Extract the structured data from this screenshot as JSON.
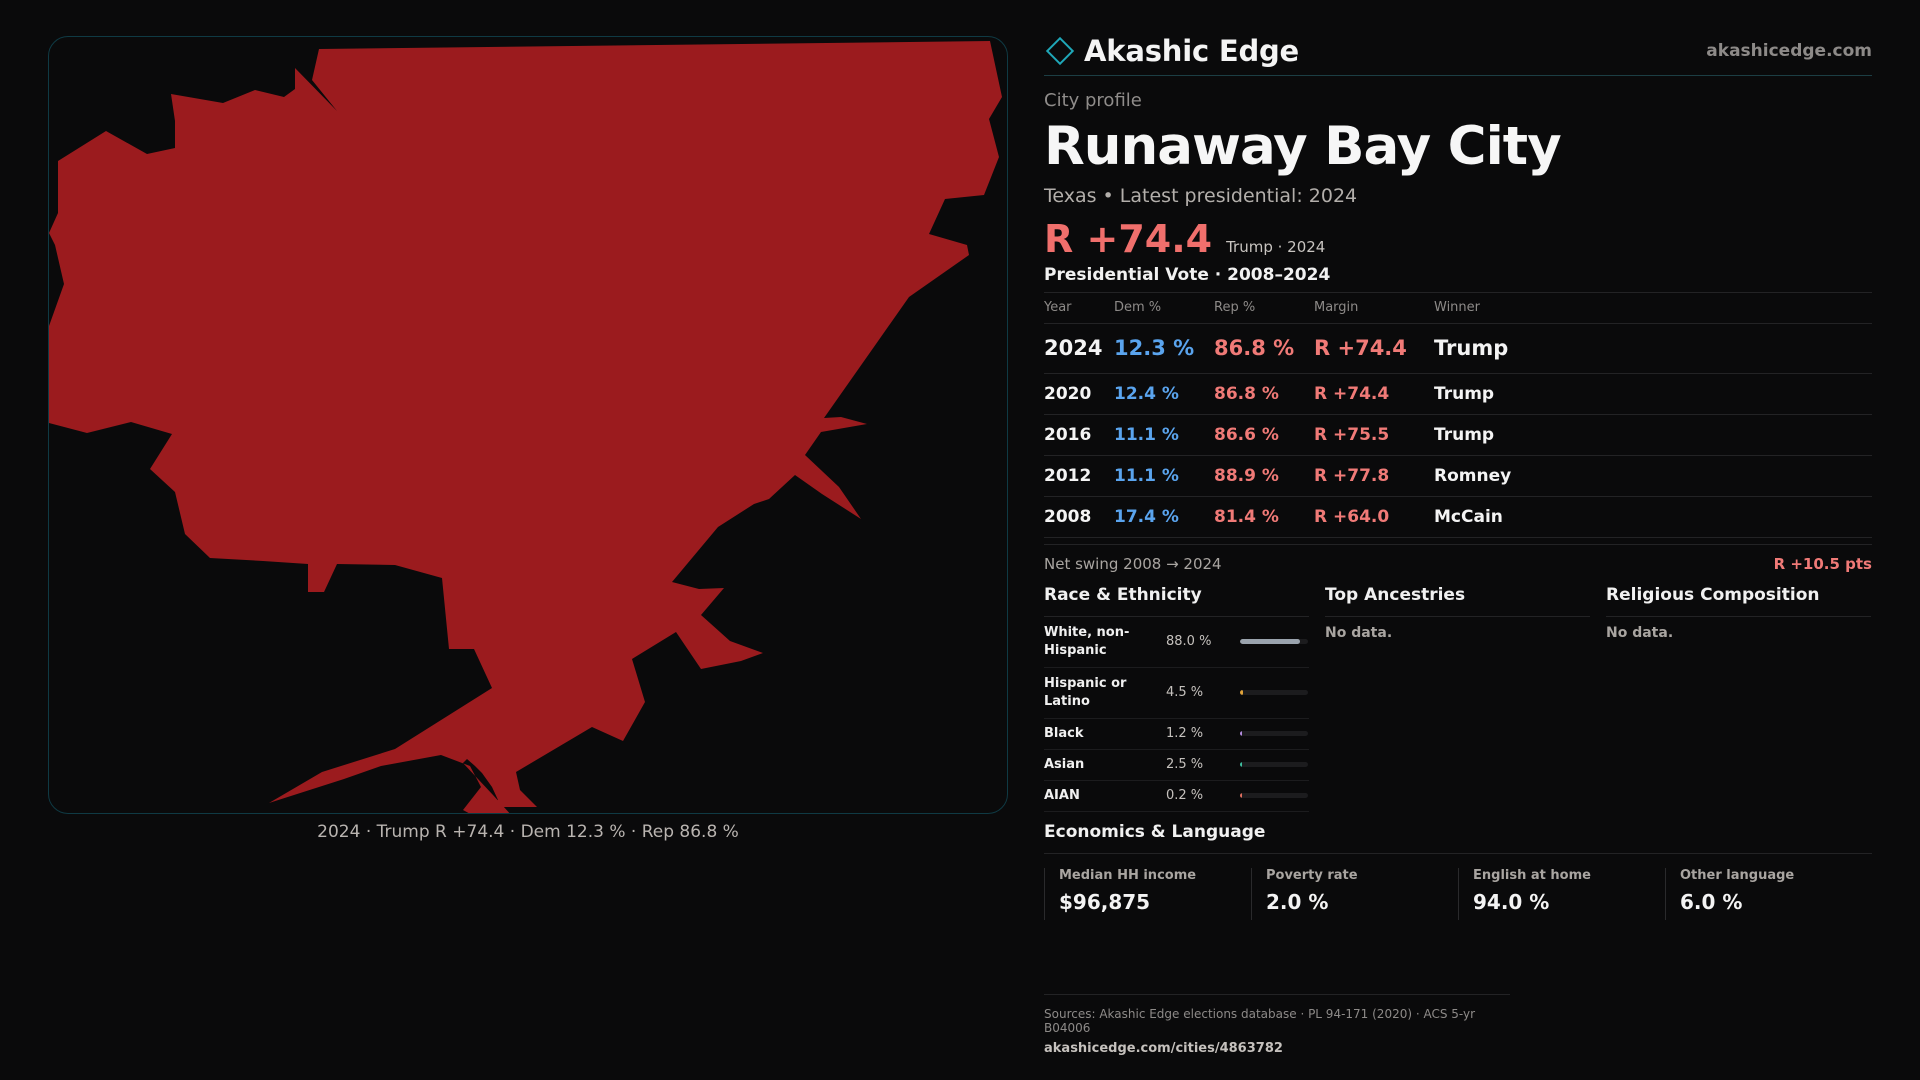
{
  "map": {
    "fill_color": "#9b1b1e",
    "caption": "2024 · Trump R +74.4 · Dem 12.3 % · Rep 86.8 %"
  },
  "brand": {
    "name": "Akashic Edge",
    "url": "akashicedge.com",
    "icon": "diamond-icon"
  },
  "profile": {
    "eyebrow": "City profile",
    "title": "Runaway Bay City",
    "subtitle": "Texas • Latest presidential: 2024",
    "margin": "R +74.4",
    "margin_note": "Trump · 2024"
  },
  "vote": {
    "title": "Presidential Vote · 2008–2024",
    "headers": {
      "year": "Year",
      "dem": "Dem %",
      "rep": "Rep %",
      "margin": "Margin",
      "winner": "Winner"
    },
    "rows": [
      {
        "year": "2024",
        "dem": "12.3 %",
        "rep": "86.8 %",
        "margin": "R +74.4",
        "winner": "Trump"
      },
      {
        "year": "2020",
        "dem": "12.4 %",
        "rep": "86.8 %",
        "margin": "R +74.4",
        "winner": "Trump"
      },
      {
        "year": "2016",
        "dem": "11.1 %",
        "rep": "86.6 %",
        "margin": "R +75.5",
        "winner": "Trump"
      },
      {
        "year": "2012",
        "dem": "11.1 %",
        "rep": "88.9 %",
        "margin": "R +77.8",
        "winner": "Romney"
      },
      {
        "year": "2008",
        "dem": "17.4 %",
        "rep": "81.4 %",
        "margin": "R +64.0",
        "winner": "McCain"
      }
    ],
    "swing_label": "Net swing 2008 → 2024",
    "swing_value": "R +10.5 pts"
  },
  "race": {
    "title": "Race & Ethnicity",
    "rows": [
      {
        "label": "White, non-Hispanic",
        "pct": "88.0 %",
        "fraction": 0.88,
        "color": "#9aa3ad"
      },
      {
        "label": "Hispanic or Latino",
        "pct": "4.5 %",
        "fraction": 0.045,
        "color": "#e0a33a"
      },
      {
        "label": "Black",
        "pct": "1.2 %",
        "fraction": 0.012,
        "color": "#b58de0"
      },
      {
        "label": "Asian",
        "pct": "2.5 %",
        "fraction": 0.025,
        "color": "#3fc0a0"
      },
      {
        "label": "AIAN",
        "pct": "0.2 %",
        "fraction": 0.002,
        "color": "#e07060"
      }
    ]
  },
  "ancestries": {
    "title": "Top Ancestries",
    "empty": "No data."
  },
  "religion": {
    "title": "Religious Composition",
    "empty": "No data."
  },
  "economics": {
    "title": "Economics & Language",
    "cards": [
      {
        "label": "Median HH income",
        "value": "$96,875"
      },
      {
        "label": "Poverty rate",
        "value": "2.0 %"
      },
      {
        "label": "English at home",
        "value": "94.0 %"
      },
      {
        "label": "Other language",
        "value": "6.0 %"
      }
    ]
  },
  "footer": {
    "sources": "Sources: Akashic Edge elections database · PL 94-171 (2020) · ACS 5-yr B04006",
    "url": "akashicedge.com/cities/4863782"
  }
}
